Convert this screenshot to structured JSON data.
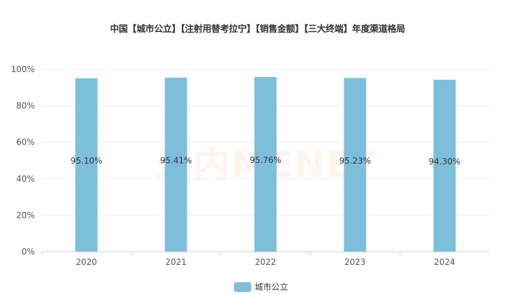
{
  "chart_data": {
    "type": "bar",
    "title": "中国【城市公立】【注射用替考拉宁】【销售金额】【三大终端】年度渠道格局",
    "categories": [
      "2020",
      "2021",
      "2022",
      "2023",
      "2024"
    ],
    "series": [
      {
        "name": "城市公立",
        "values": [
          95.1,
          95.41,
          95.76,
          95.23,
          94.3
        ],
        "color": "#7dbfdb"
      }
    ],
    "data_labels": [
      "95.10%",
      "95.41%",
      "95.76%",
      "95.23%",
      "94.30%"
    ],
    "yticks": [
      "0%",
      "20%",
      "40%",
      "60%",
      "80%",
      "100%"
    ],
    "ylim": [
      0,
      100
    ],
    "grid": true,
    "legend": "bottom"
  },
  "watermark": "MENET"
}
